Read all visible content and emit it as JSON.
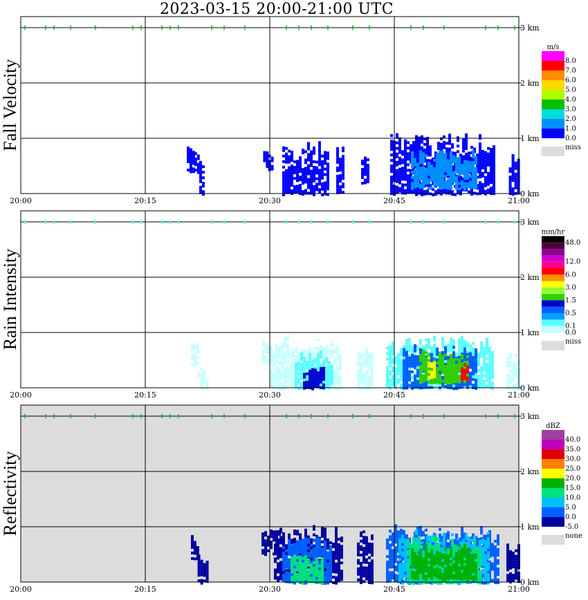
{
  "title": "2023-03-15   20:00-21:00 UTC",
  "time_ticks": [
    "20:00",
    "20:15",
    "20:30",
    "20:45",
    "21:00"
  ],
  "height_ticks": [
    "0 km",
    "1 km",
    "2 km",
    "3 km"
  ],
  "chart_data": [
    {
      "type": "heatmap",
      "title": "Fall Velocity",
      "ylabel": "Fall Velocity",
      "unit": "m/s",
      "xlim": [
        "20:00",
        "21:00"
      ],
      "ylim": [
        0,
        3.2
      ],
      "missing_label": "miss",
      "missing_color": "#dcdcdc",
      "background": "#ffffff",
      "colorbar": [
        {
          "label": "0.0",
          "color": "#0000ff"
        },
        {
          "label": "1.0",
          "color": "#0090ff"
        },
        {
          "label": "2.0",
          "color": "#00dcdc"
        },
        {
          "label": "3.0",
          "color": "#00c000"
        },
        {
          "label": "4.0",
          "color": "#b0ff00"
        },
        {
          "label": "5.0",
          "color": "#ffd800"
        },
        {
          "label": "6.0",
          "color": "#ff8c00"
        },
        {
          "label": "7.0",
          "color": "#ff0000"
        },
        {
          "label": "8.0",
          "color": "#ff00ff"
        }
      ],
      "echoes": [
        {
          "t0": 20.0,
          "t1": 20.8,
          "h0": 0.4,
          "h1": 0.85,
          "value": 0.4
        },
        {
          "t0": 20.9,
          "t1": 21.3,
          "h0": 0.4,
          "h1": 0.75,
          "value": 0.4
        },
        {
          "t0": 21.5,
          "t1": 22.0,
          "h0": 0.0,
          "h1": 0.6,
          "value": 0.6
        },
        {
          "t0": 29.2,
          "t1": 29.8,
          "h0": 0.5,
          "h1": 0.85,
          "value": 0.4
        },
        {
          "t0": 29.8,
          "t1": 30.4,
          "h0": 0.45,
          "h1": 0.75,
          "value": 0.4
        },
        {
          "t0": 31.5,
          "t1": 37.0,
          "h0": 0.0,
          "h1": 0.95,
          "value": 0.5
        },
        {
          "t0": 38.0,
          "t1": 38.8,
          "h0": 0.0,
          "h1": 0.95,
          "value": 0.5
        },
        {
          "t0": 41.0,
          "t1": 42.0,
          "h0": 0.2,
          "h1": 0.8,
          "value": 0.5
        },
        {
          "t0": 44.5,
          "t1": 57.0,
          "h0": 0.0,
          "h1": 1.1,
          "value": 0.6
        },
        {
          "t0": 47.0,
          "t1": 55.0,
          "h0": 0.1,
          "h1": 0.8,
          "value": 1.4
        },
        {
          "t0": 58.8,
          "t1": 60.0,
          "h0": 0.0,
          "h1": 0.8,
          "value": 0.5
        }
      ]
    },
    {
      "type": "heatmap",
      "title": "Rain Intensity",
      "ylabel": "Rain Intensity",
      "unit": "mm/hr",
      "xlim": [
        "20:00",
        "21:00"
      ],
      "ylim": [
        0,
        3.2
      ],
      "missing_label": "miss",
      "missing_color": "#dcdcdc",
      "background": "#ffffff",
      "colorbar": [
        {
          "label": "0.0",
          "color": "#c8ffff"
        },
        {
          "label": "0.1",
          "color": "#5cffff"
        },
        {
          "label": "",
          "color": "#00a0ff"
        },
        {
          "label": "0.5",
          "color": "#0060ff"
        },
        {
          "label": "",
          "color": "#0000d0"
        },
        {
          "label": "1.5",
          "color": "#30d000"
        },
        {
          "label": "",
          "color": "#90ff30"
        },
        {
          "label": "3.0",
          "color": "#ffff00"
        },
        {
          "label": "",
          "color": "#ff9000"
        },
        {
          "label": "6.0",
          "color": "#ff0000"
        },
        {
          "label": "",
          "color": "#ff0090"
        },
        {
          "label": "12.0",
          "color": "#d000d0"
        },
        {
          "label": "",
          "color": "#900090"
        },
        {
          "label": "",
          "color": "#500040"
        },
        {
          "label": "48.0",
          "color": "#000000"
        }
      ],
      "echoes": [
        {
          "t0": 20.5,
          "t1": 21.3,
          "h0": 0.4,
          "h1": 0.85,
          "value": 0.05
        },
        {
          "t0": 21.3,
          "t1": 22.5,
          "h0": 0.0,
          "h1": 0.4,
          "value": 0.05
        },
        {
          "t0": 29.0,
          "t1": 31.0,
          "h0": 0.45,
          "h1": 0.85,
          "value": 0.05
        },
        {
          "t0": 30.0,
          "t1": 38.5,
          "h0": 0.0,
          "h1": 0.95,
          "value": 0.05
        },
        {
          "t0": 33.0,
          "t1": 37.5,
          "h0": 0.0,
          "h1": 0.7,
          "value": 0.3
        },
        {
          "t0": 34.0,
          "t1": 36.5,
          "h0": 0.0,
          "h1": 0.4,
          "value": 1.0
        },
        {
          "t0": 40.5,
          "t1": 42.5,
          "h0": 0.0,
          "h1": 0.85,
          "value": 0.05
        },
        {
          "t0": 44.0,
          "t1": 57.0,
          "h0": 0.0,
          "h1": 0.95,
          "value": 0.2
        },
        {
          "t0": 46.0,
          "t1": 55.0,
          "h0": 0.0,
          "h1": 0.8,
          "value": 0.7
        },
        {
          "t0": 48.0,
          "t1": 54.0,
          "h0": 0.1,
          "h1": 0.7,
          "value": 2.0
        },
        {
          "t0": 49.0,
          "t1": 50.0,
          "h0": 0.2,
          "h1": 0.6,
          "value": 4.0
        },
        {
          "t0": 53.0,
          "t1": 53.8,
          "h0": 0.15,
          "h1": 0.5,
          "value": 7.0
        },
        {
          "t0": 58.5,
          "t1": 60.0,
          "h0": 0.0,
          "h1": 0.7,
          "value": 0.05
        }
      ]
    },
    {
      "type": "heatmap",
      "title": "Reflectivity",
      "ylabel": "Reflectivity",
      "unit": "dBZ",
      "xlim": [
        "20:00",
        "21:00"
      ],
      "ylim": [
        0,
        3.2
      ],
      "missing_label": "none",
      "missing_color": "#dcdcdc",
      "background": "#dcdcdc",
      "colorbar": [
        {
          "label": "-5.0",
          "color": "#0000a0"
        },
        {
          "label": "0.0",
          "color": "#0060ff"
        },
        {
          "label": "5.0",
          "color": "#00c0ff"
        },
        {
          "label": "10.0",
          "color": "#00e080"
        },
        {
          "label": "15.0",
          "color": "#00b000"
        },
        {
          "label": "20.0",
          "color": "#ffff00"
        },
        {
          "label": "25.0",
          "color": "#ff8000"
        },
        {
          "label": "30.0",
          "color": "#e00000"
        },
        {
          "label": "35.0",
          "color": "#c000c0"
        },
        {
          "label": "40.0",
          "color": "#a040a0"
        }
      ],
      "echoes": [
        {
          "t0": 20.5,
          "t1": 21.3,
          "h0": 0.4,
          "h1": 0.85,
          "value": -3
        },
        {
          "t0": 21.3,
          "t1": 22.5,
          "h0": 0.0,
          "h1": 0.5,
          "value": -3
        },
        {
          "t0": 29.0,
          "t1": 31.0,
          "h0": 0.5,
          "h1": 0.95,
          "value": -3
        },
        {
          "t0": 30.5,
          "t1": 38.5,
          "h0": 0.0,
          "h1": 1.05,
          "value": -3
        },
        {
          "t0": 31.5,
          "t1": 37.5,
          "h0": 0.0,
          "h1": 0.9,
          "value": 3
        },
        {
          "t0": 32.5,
          "t1": 36.5,
          "h0": 0.0,
          "h1": 0.55,
          "value": 14
        },
        {
          "t0": 40.5,
          "t1": 42.5,
          "h0": 0.0,
          "h1": 0.95,
          "value": -3
        },
        {
          "t0": 44.0,
          "t1": 57.5,
          "h0": 0.0,
          "h1": 1.05,
          "value": 3
        },
        {
          "t0": 45.5,
          "t1": 56.5,
          "h0": 0.0,
          "h1": 0.95,
          "value": 8
        },
        {
          "t0": 46.5,
          "t1": 55.5,
          "h0": 0.0,
          "h1": 0.85,
          "value": 13
        },
        {
          "t0": 47.0,
          "t1": 55.0,
          "h0": 0.05,
          "h1": 0.7,
          "value": 18
        },
        {
          "t0": 58.5,
          "t1": 60.0,
          "h0": 0.0,
          "h1": 0.75,
          "value": -3
        }
      ]
    }
  ]
}
